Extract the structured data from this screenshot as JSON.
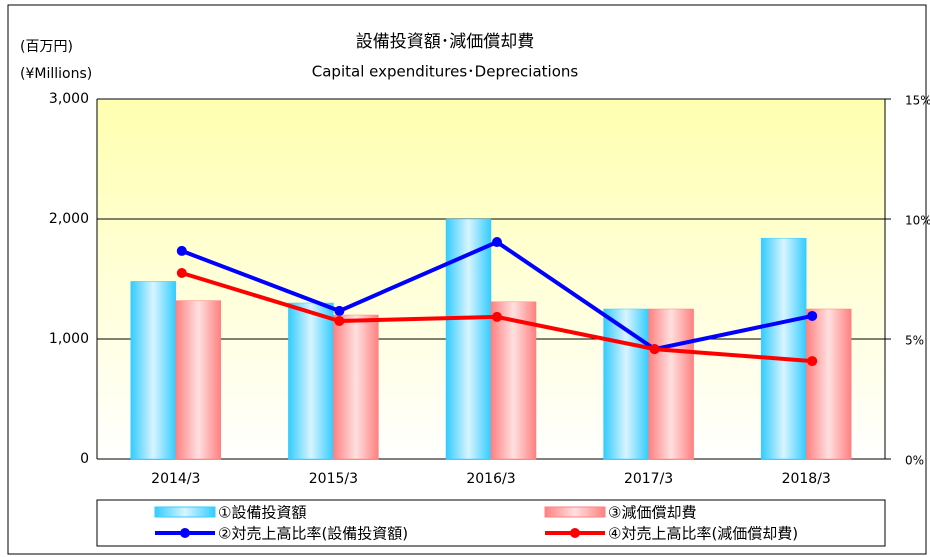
{
  "chart_data": {
    "type": "bar",
    "title": "設備投資額･減価償却費",
    "subtitle": "Capital expenditures･Depreciations",
    "y_axis_label": "(百万円)",
    "y_axis_label_en": "(¥Millions)",
    "categories": [
      "2014/3",
      "2015/3",
      "2016/3",
      "2017/3",
      "2018/3"
    ],
    "series": [
      {
        "name": "①設備投資額",
        "type": "bar",
        "color": "#33ccff",
        "values": [
          1480,
          1300,
          2000,
          1250,
          1840
        ]
      },
      {
        "name": "③減価償却費",
        "type": "bar",
        "color": "#ff8080",
        "values": [
          1320,
          1200,
          1310,
          1250,
          1250
        ]
      },
      {
        "name": "②対売上高比率(設備投資額)",
        "type": "line",
        "axis": "y2",
        "color": "#0000ff",
        "values": [
          8.67,
          6.17,
          9.04,
          4.58,
          5.96
        ]
      },
      {
        "name": "④対売上高比率(減価償却費)",
        "type": "line",
        "axis": "y2",
        "color": "#ff0000",
        "values": [
          7.75,
          5.75,
          5.92,
          4.58,
          4.08
        ]
      }
    ],
    "ylim": [
      0,
      3000
    ],
    "yticks": [
      {
        "value": 0,
        "label": "0"
      },
      {
        "value": 1000,
        "label": "1,000"
      },
      {
        "value": 2000,
        "label": "2,000"
      },
      {
        "value": 3000,
        "label": "3,000"
      }
    ],
    "y2lim": [
      0,
      15
    ],
    "y2ticks": [
      {
        "value": 0,
        "label": "0%"
      },
      {
        "value": 5,
        "label": "5%"
      },
      {
        "value": 10,
        "label": "10%"
      },
      {
        "value": 15,
        "label": "15%"
      }
    ],
    "grid": true,
    "legend": "bottom"
  }
}
